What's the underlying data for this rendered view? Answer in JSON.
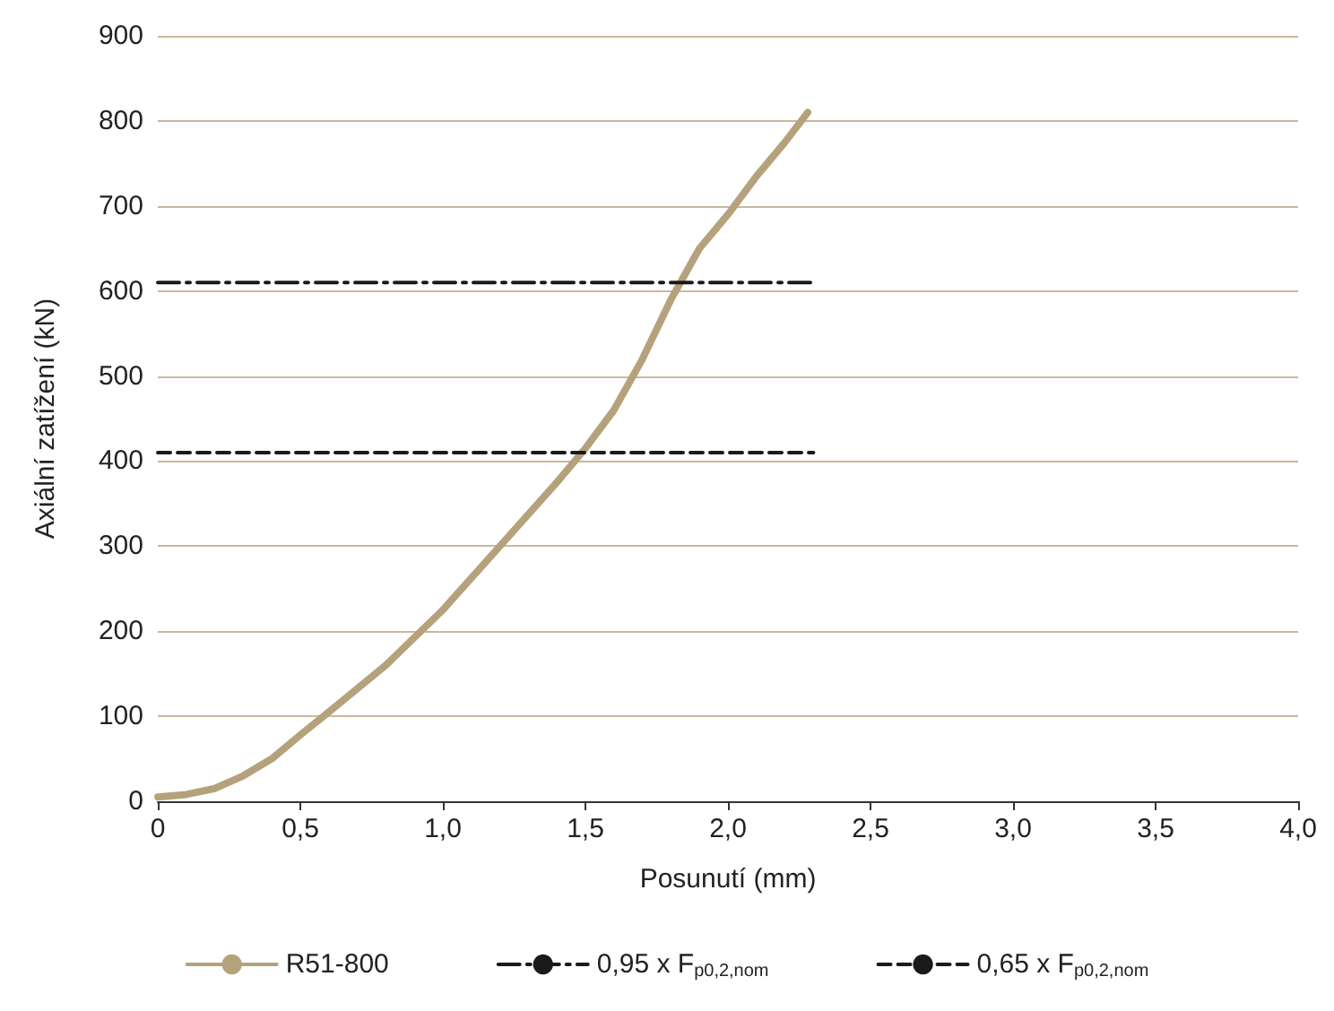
{
  "chart_data": {
    "type": "line",
    "xlabel": "Posunutí (mm)",
    "ylabel": "Axiální zatížení (kN)",
    "xlim": [
      0,
      4
    ],
    "xticks": [
      0,
      {
        "value": 0.5,
        "label": "0,5"
      },
      {
        "value": 1,
        "label": "1,0"
      },
      {
        "value": 1.5,
        "label": "1,5"
      },
      {
        "value": 2,
        "label": "2,0"
      },
      {
        "value": 2.5,
        "label": "2,5"
      },
      {
        "value": 3,
        "label": "3,0"
      },
      {
        "value": 3.5,
        "label": "3,5"
      },
      {
        "value": 4,
        "label": "4,0"
      }
    ],
    "ylim": [
      0,
      900
    ],
    "yticks": [
      0,
      100,
      200,
      300,
      400,
      500,
      600,
      700,
      800,
      900
    ],
    "grid": "y",
    "legend": "bottom",
    "marker": "none",
    "series": [
      {
        "name": "R51-800",
        "color": "#b5a27c",
        "line_style": "solid",
        "x": [
          0,
          0.1,
          0.2,
          0.3,
          0.4,
          0.5,
          0.6,
          0.8,
          1.0,
          1.2,
          1.4,
          1.5,
          1.6,
          1.7,
          1.8,
          1.9,
          2.0,
          2.1,
          2.2,
          2.28
        ],
        "values": [
          5,
          8,
          15,
          30,
          50,
          78,
          105,
          160,
          225,
          300,
          375,
          415,
          460,
          520,
          590,
          650,
          690,
          735,
          775,
          810
        ]
      },
      {
        "name": "0,95 x F$_{p0,2,nom}$",
        "color": "#1a1a1a",
        "line_style": "dashdot",
        "x": [
          0,
          2.3
        ],
        "values": [
          610,
          610
        ]
      },
      {
        "name": "0,65 x F$_{p0,2,nom}$",
        "color": "#1a1a1a",
        "line_style": "dashed",
        "x": [
          0,
          2.3
        ],
        "values": [
          410,
          410
        ]
      }
    ]
  }
}
